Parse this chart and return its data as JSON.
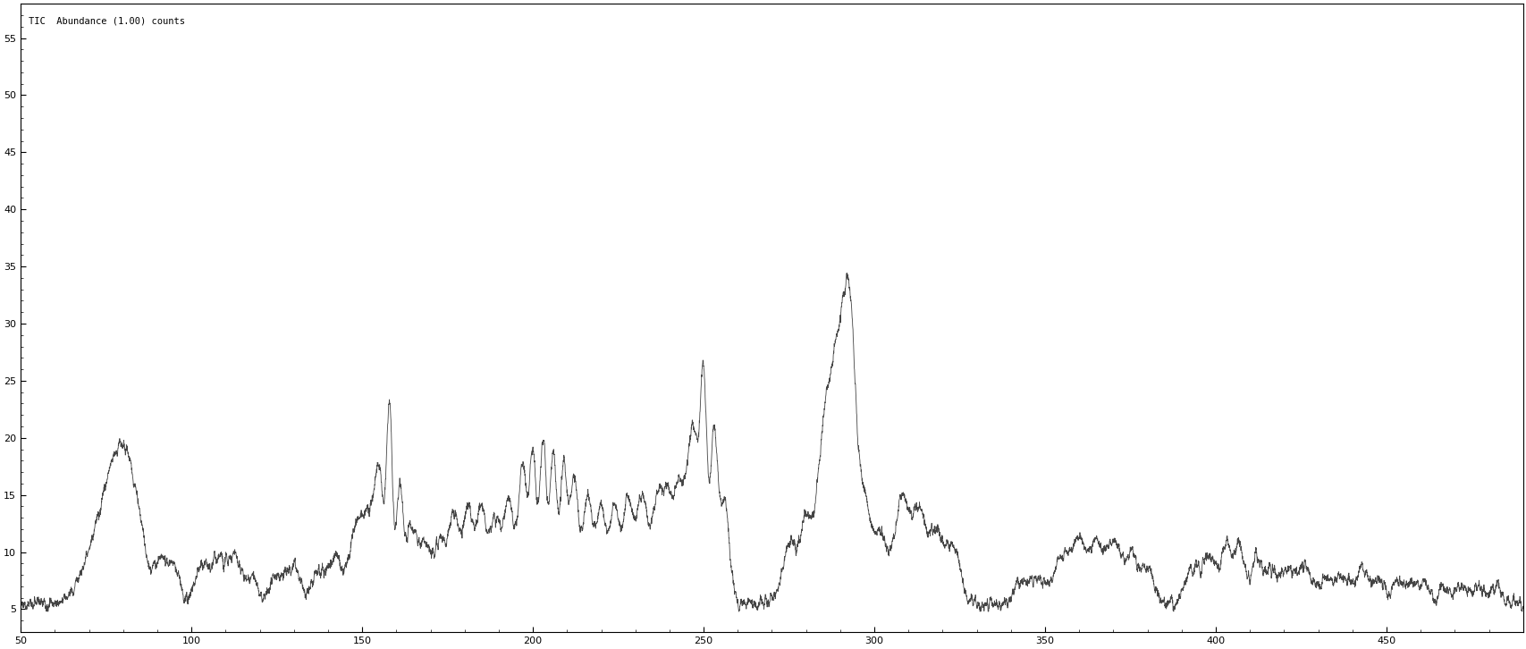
{
  "title": "TIC  Abundance (1.00) counts",
  "xlim": [
    50,
    490
  ],
  "ylim": [
    3,
    58
  ],
  "xticks": [
    50,
    100,
    150,
    200,
    250,
    300,
    350,
    400,
    450
  ],
  "yticks": [
    5,
    10,
    15,
    20,
    25,
    30,
    35,
    40,
    45,
    50,
    55
  ],
  "line_color": "#444444",
  "background_color": "#ffffff",
  "title_fontsize": 7.5,
  "axis_fontsize": 8
}
